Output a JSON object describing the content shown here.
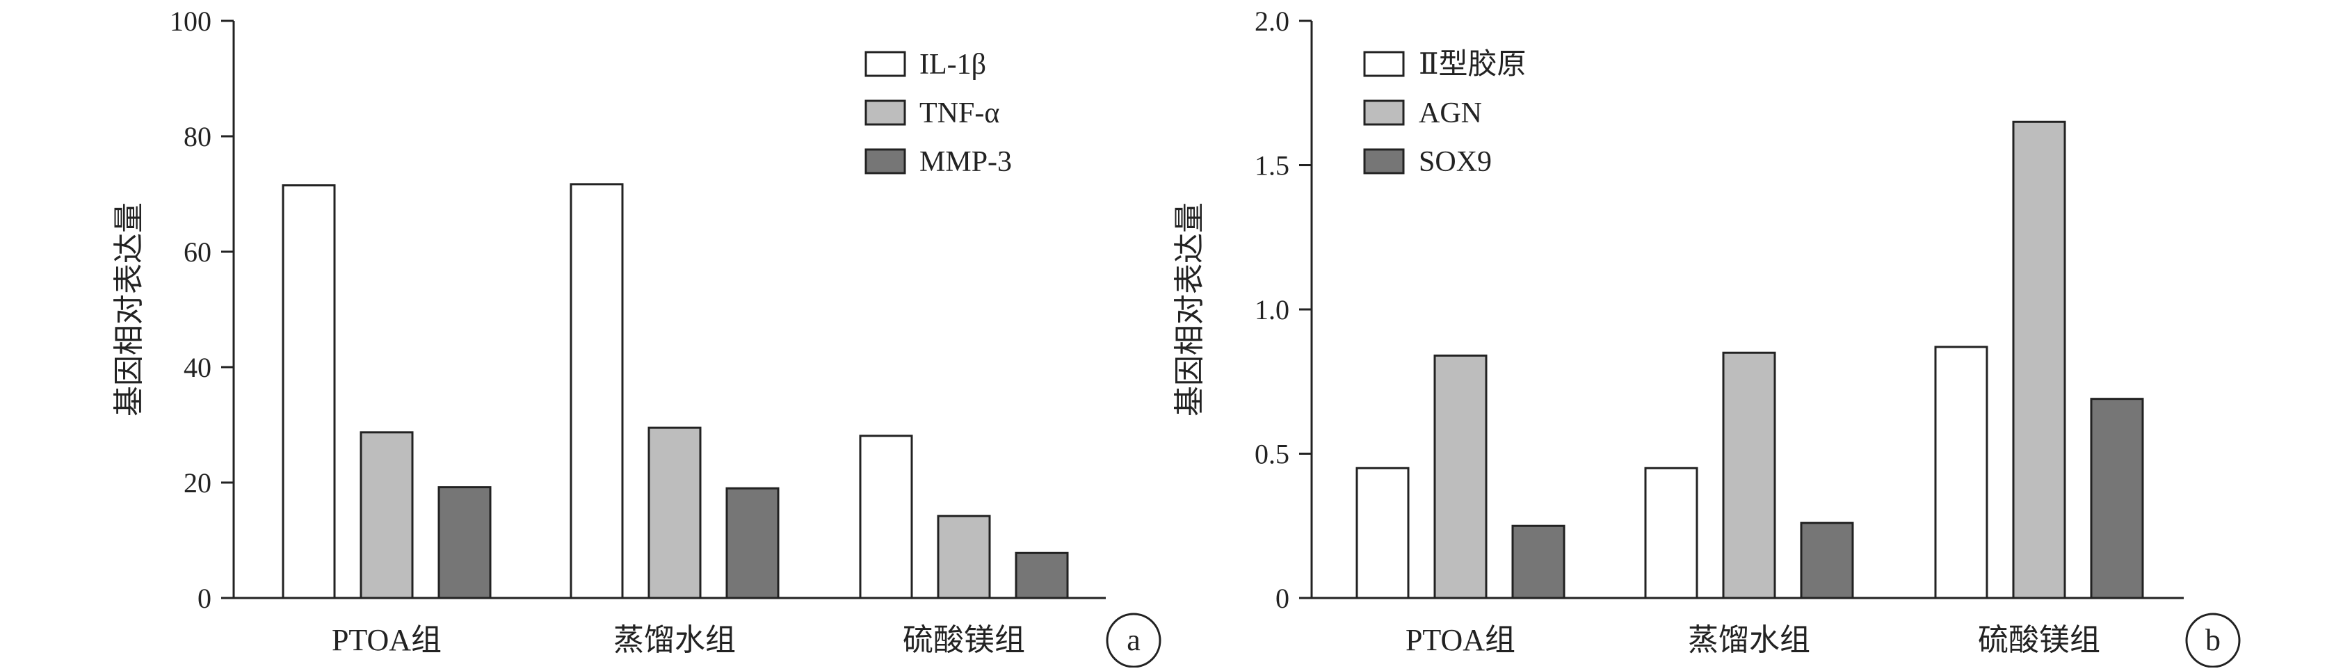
{
  "chart_data": [
    {
      "type": "bar",
      "panel_label": "a",
      "ylabel": "基因相对表达量",
      "ylim": [
        0,
        100
      ],
      "yticks": [
        "0",
        "20",
        "40",
        "60",
        "80",
        "100"
      ],
      "categories": [
        "PTOA组",
        "蒸馏水组",
        "硫酸镁组"
      ],
      "legend_position": "top-right",
      "series": [
        {
          "name": "IL-1β",
          "color": "#ffffff",
          "values": [
            71.5,
            71.7,
            28.1
          ]
        },
        {
          "name": "TNF-α",
          "color": "#bdbdbd",
          "values": [
            28.7,
            29.5,
            14.2
          ]
        },
        {
          "name": "MMP-3",
          "color": "#767676",
          "values": [
            19.2,
            19.0,
            7.8
          ]
        }
      ]
    },
    {
      "type": "bar",
      "panel_label": "b",
      "ylabel": "基因相对表达量",
      "ylim": [
        0,
        2.0
      ],
      "yticks": [
        "0",
        "0.5",
        "1.0",
        "1.5",
        "2.0"
      ],
      "categories": [
        "PTOA组",
        "蒸馏水组",
        "硫酸镁组"
      ],
      "legend_position": "top-left",
      "series": [
        {
          "name": "Ⅱ型胶原",
          "color": "#ffffff",
          "values": [
            0.45,
            0.45,
            0.87
          ]
        },
        {
          "name": "AGN",
          "color": "#bdbdbd",
          "values": [
            0.84,
            0.85,
            1.65
          ]
        },
        {
          "name": "SOX9",
          "color": "#767676",
          "values": [
            0.25,
            0.26,
            0.69
          ]
        }
      ]
    }
  ]
}
